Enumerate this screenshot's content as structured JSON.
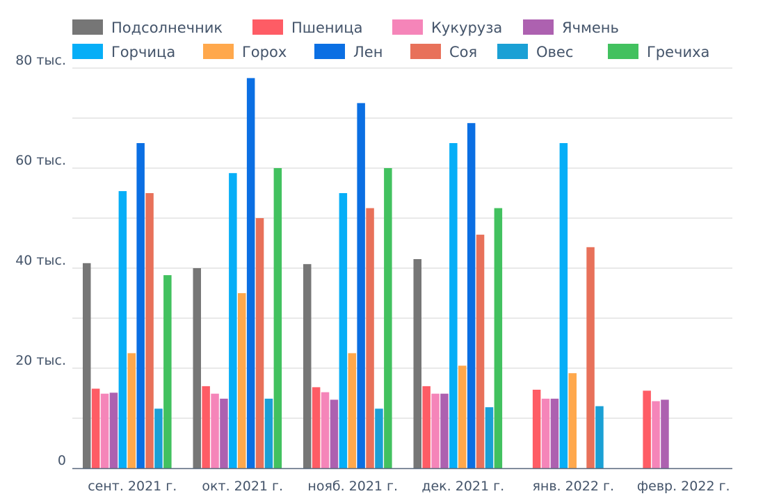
{
  "chart_data": {
    "type": "bar",
    "categories": [
      "сент. 2021 г.",
      "окт. 2021 г.",
      "нояб. 2021 г.",
      "дек. 2021 г.",
      "янв. 2022 г.",
      "февр. 2022 г."
    ],
    "ylim": [
      0,
      80000
    ],
    "y_ticks": [
      {
        "value": 0,
        "label": "0"
      },
      {
        "value": 20000,
        "label": "20 тыс."
      },
      {
        "value": 40000,
        "label": "40 тыс."
      },
      {
        "value": 60000,
        "label": "60 тыс."
      },
      {
        "value": 80000,
        "label": "80 тыс."
      }
    ],
    "grid": true,
    "legend_position": "top",
    "series": [
      {
        "name": "Подсолнечник",
        "color": "#767676",
        "values": [
          41000,
          40000,
          40800,
          41800,
          null,
          null
        ]
      },
      {
        "name": "Пшеница",
        "color": "#fe5c65",
        "values": [
          15900,
          16400,
          16200,
          16400,
          15700,
          15500
        ]
      },
      {
        "name": "Кукуруза",
        "color": "#f585b9",
        "values": [
          14900,
          14900,
          15200,
          14900,
          13900,
          13400
        ]
      },
      {
        "name": "Ячмень",
        "color": "#ad61b0",
        "values": [
          15100,
          13900,
          13700,
          14900,
          13900,
          13700
        ]
      },
      {
        "name": "Горчица",
        "color": "#06aef7",
        "values": [
          55400,
          59000,
          55000,
          65000,
          65000,
          null
        ]
      },
      {
        "name": "Горох",
        "color": "#ffa84c",
        "values": [
          23000,
          35000,
          23000,
          20500,
          19000,
          null
        ]
      },
      {
        "name": "Лен",
        "color": "#0b6fe3",
        "values": [
          65000,
          78000,
          73000,
          69000,
          null,
          null
        ]
      },
      {
        "name": "Соя",
        "color": "#e8715a",
        "values": [
          55000,
          50000,
          52000,
          46700,
          44200,
          null
        ]
      },
      {
        "name": "Овес",
        "color": "#1aa0d5",
        "values": [
          11900,
          13900,
          11900,
          12200,
          12400,
          null
        ]
      },
      {
        "name": "Гречиха",
        "color": "#42c15f",
        "values": [
          38600,
          60000,
          60000,
          52000,
          null,
          null
        ]
      }
    ]
  }
}
